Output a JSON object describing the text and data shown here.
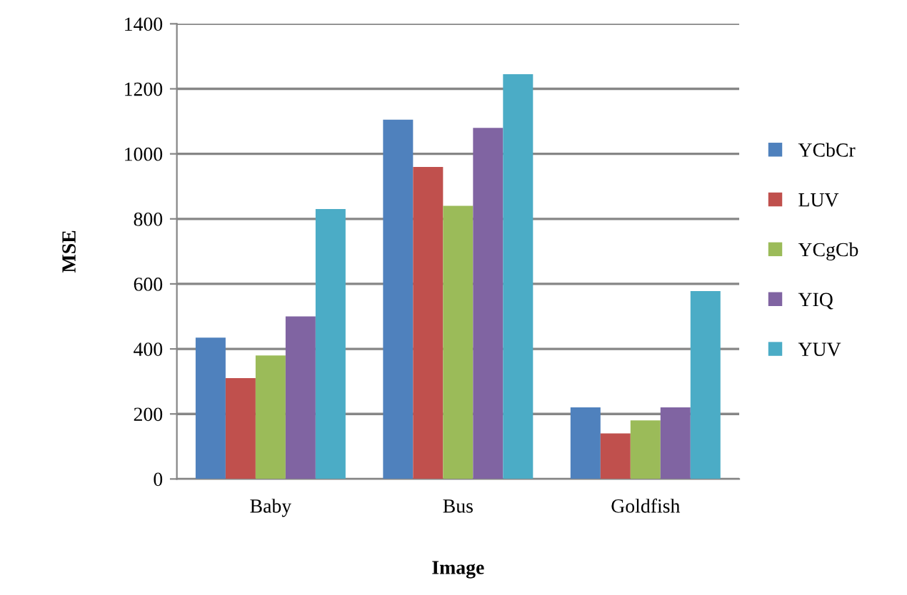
{
  "chart_data": {
    "type": "bar",
    "xlabel": "Image",
    "ylabel": "MSE",
    "categories": [
      "Baby",
      "Bus",
      "Goldfish"
    ],
    "series": [
      {
        "name": "YCbCr",
        "color": "#4f81bd",
        "values": [
          435,
          1105,
          220
        ]
      },
      {
        "name": "LUV",
        "color": "#c0504d",
        "values": [
          310,
          960,
          140
        ]
      },
      {
        "name": "YCgCb",
        "color": "#9bbb59",
        "values": [
          380,
          840,
          180
        ]
      },
      {
        "name": "YIQ",
        "color": "#8064a2",
        "values": [
          500,
          1080,
          220
        ]
      },
      {
        "name": "YUV",
        "color": "#4bacc6",
        "values": [
          830,
          1245,
          578
        ]
      }
    ],
    "ylim": [
      0,
      1400
    ],
    "yticks": [
      0,
      200,
      400,
      600,
      800,
      1000,
      1200,
      1400
    ],
    "grid": "y",
    "legend": "right"
  }
}
